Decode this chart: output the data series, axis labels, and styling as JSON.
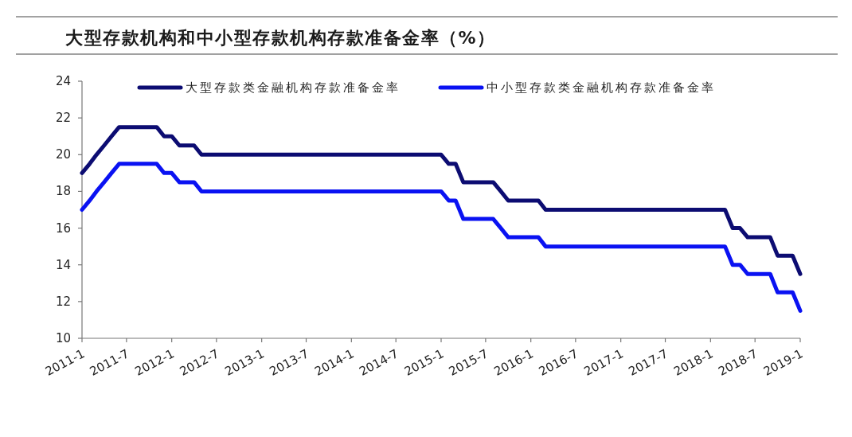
{
  "chart_data": {
    "type": "line",
    "title": "大型存款机构和中小型存款机构存款准备金率（%）",
    "x": [
      "2011-01",
      "2011-02",
      "2011-03",
      "2011-04",
      "2011-05",
      "2011-06",
      "2011-07",
      "2011-08",
      "2011-09",
      "2011-10",
      "2011-11",
      "2011-12",
      "2012-01",
      "2012-02",
      "2012-03",
      "2012-04",
      "2012-05",
      "2012-06",
      "2012-07",
      "2012-08",
      "2012-09",
      "2012-10",
      "2012-11",
      "2012-12",
      "2013-01",
      "2013-02",
      "2013-03",
      "2013-04",
      "2013-05",
      "2013-06",
      "2013-07",
      "2013-08",
      "2013-09",
      "2013-10",
      "2013-11",
      "2013-12",
      "2014-01",
      "2014-02",
      "2014-03",
      "2014-04",
      "2014-05",
      "2014-06",
      "2014-07",
      "2014-08",
      "2014-09",
      "2014-10",
      "2014-11",
      "2014-12",
      "2015-01",
      "2015-02",
      "2015-03",
      "2015-04",
      "2015-05",
      "2015-06",
      "2015-07",
      "2015-08",
      "2015-09",
      "2015-10",
      "2015-11",
      "2015-12",
      "2016-01",
      "2016-02",
      "2016-03",
      "2016-04",
      "2016-05",
      "2016-06",
      "2016-07",
      "2016-08",
      "2016-09",
      "2016-10",
      "2016-11",
      "2016-12",
      "2017-01",
      "2017-02",
      "2017-03",
      "2017-04",
      "2017-05",
      "2017-06",
      "2017-07",
      "2017-08",
      "2017-09",
      "2017-10",
      "2017-11",
      "2017-12",
      "2018-01",
      "2018-02",
      "2018-03",
      "2018-04",
      "2018-05",
      "2018-06",
      "2018-07",
      "2018-08",
      "2018-09",
      "2018-10",
      "2018-11",
      "2018-12",
      "2019-01"
    ],
    "series": [
      {
        "name": "大型存款类金融机构存款准备金率",
        "color": "#0c0c72",
        "values": [
          19,
          19.5,
          20,
          20.5,
          21,
          21.5,
          21.5,
          21.5,
          21.5,
          21.5,
          21.5,
          21,
          21,
          20.5,
          20.5,
          20.5,
          20,
          20,
          20,
          20,
          20,
          20,
          20,
          20,
          20,
          20,
          20,
          20,
          20,
          20,
          20,
          20,
          20,
          20,
          20,
          20,
          20,
          20,
          20,
          20,
          20,
          20,
          20,
          20,
          20,
          20,
          20,
          20,
          20,
          19.5,
          19.5,
          18.5,
          18.5,
          18.5,
          18.5,
          18.5,
          18,
          17.5,
          17.5,
          17.5,
          17.5,
          17.5,
          17,
          17,
          17,
          17,
          17,
          17,
          17,
          17,
          17,
          17,
          17,
          17,
          17,
          17,
          17,
          17,
          17,
          17,
          17,
          17,
          17,
          17,
          17,
          17,
          17,
          16,
          16,
          15.5,
          15.5,
          15.5,
          15.5,
          14.5,
          14.5,
          14.5,
          13.5
        ]
      },
      {
        "name": "中小型存款类金融机构存款准备金率",
        "color": "#0a12f2",
        "values": [
          17,
          17.5,
          18,
          18.5,
          19,
          19.5,
          19.5,
          19.5,
          19.5,
          19.5,
          19.5,
          19,
          19,
          18.5,
          18.5,
          18.5,
          18,
          18,
          18,
          18,
          18,
          18,
          18,
          18,
          18,
          18,
          18,
          18,
          18,
          18,
          18,
          18,
          18,
          18,
          18,
          18,
          18,
          18,
          18,
          18,
          18,
          18,
          18,
          18,
          18,
          18,
          18,
          18,
          18,
          17.5,
          17.5,
          16.5,
          16.5,
          16.5,
          16.5,
          16.5,
          16,
          15.5,
          15.5,
          15.5,
          15.5,
          15.5,
          15,
          15,
          15,
          15,
          15,
          15,
          15,
          15,
          15,
          15,
          15,
          15,
          15,
          15,
          15,
          15,
          15,
          15,
          15,
          15,
          15,
          15,
          15,
          15,
          15,
          14,
          14,
          13.5,
          13.5,
          13.5,
          13.5,
          12.5,
          12.5,
          12.5,
          11.5
        ]
      }
    ],
    "xlim": [
      "2011-01",
      "2019-01"
    ],
    "xticks": [
      {
        "value": "2011-01",
        "label": "2011-1"
      },
      {
        "value": "2011-07",
        "label": "2011-7"
      },
      {
        "value": "2012-01",
        "label": "2012-1"
      },
      {
        "value": "2012-07",
        "label": "2012-7"
      },
      {
        "value": "2013-01",
        "label": "2013-1"
      },
      {
        "value": "2013-07",
        "label": "2013-7"
      },
      {
        "value": "2014-01",
        "label": "2014-1"
      },
      {
        "value": "2014-07",
        "label": "2014-7"
      },
      {
        "value": "2015-01",
        "label": "2015-1"
      },
      {
        "value": "2015-07",
        "label": "2015-7"
      },
      {
        "value": "2016-01",
        "label": "2016-1"
      },
      {
        "value": "2016-07",
        "label": "2016-7"
      },
      {
        "value": "2017-01",
        "label": "2017-1"
      },
      {
        "value": "2017-07",
        "label": "2017-7"
      },
      {
        "value": "2018-01",
        "label": "2018-1"
      },
      {
        "value": "2018-07",
        "label": "2018-7"
      },
      {
        "value": "2019-01",
        "label": "2019-1"
      }
    ],
    "ylim": [
      10,
      24
    ],
    "yticks": [
      10,
      12,
      14,
      16,
      18,
      20,
      22,
      24
    ],
    "legend": "top"
  }
}
